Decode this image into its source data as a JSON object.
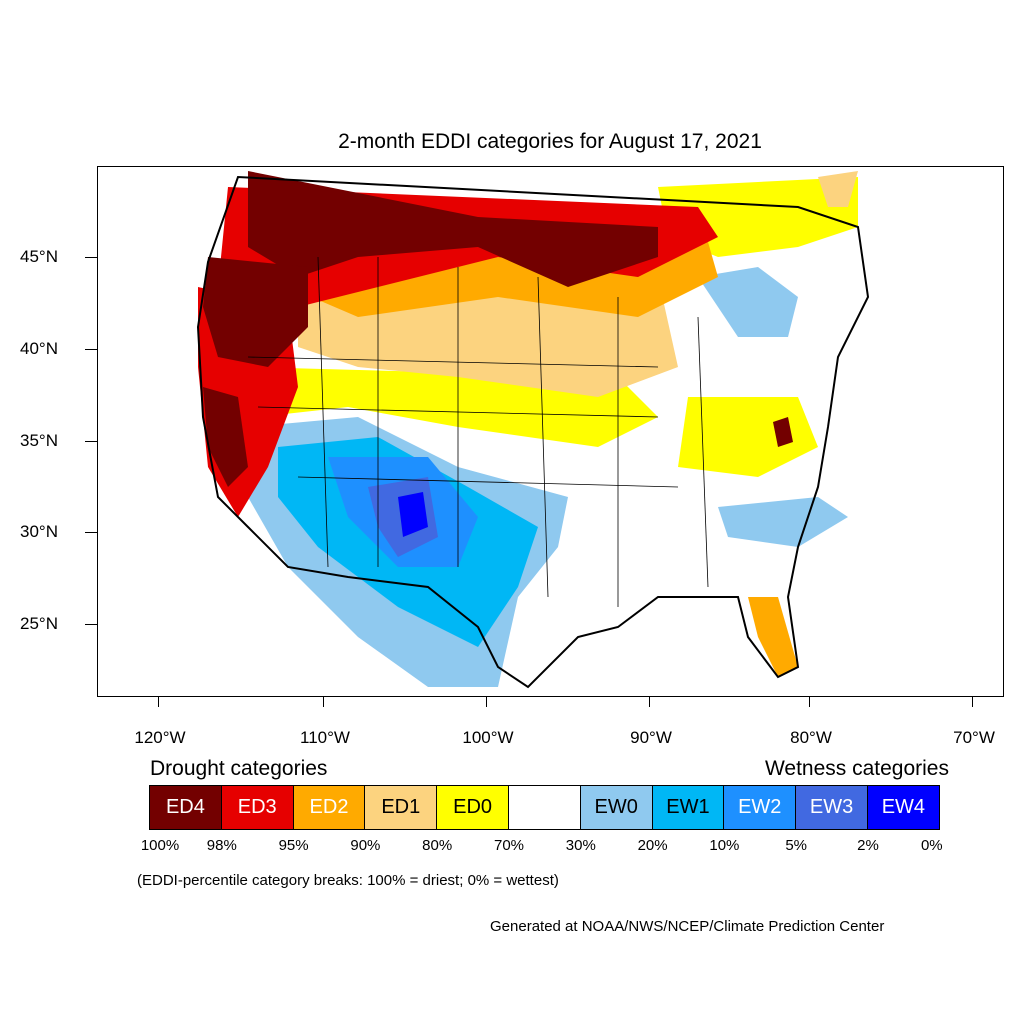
{
  "title": "2-month EDDI categories for August 17, 2021",
  "lat_labels": [
    "45°N",
    "40°N",
    "35°N",
    "30°N",
    "25°N"
  ],
  "lon_labels": [
    "120°W",
    "110°W",
    "100°W",
    "90°W",
    "80°W",
    "70°W"
  ],
  "legend": {
    "drought_heading": "Drought categories",
    "wetness_heading": "Wetness categories",
    "categories": [
      {
        "label": "ED4",
        "color": "#730000",
        "text_color": "#ffffff"
      },
      {
        "label": "ED3",
        "color": "#e60000",
        "text_color": "#ffffff"
      },
      {
        "label": "ED2",
        "color": "#ffaa00",
        "text_color": "#ffffff"
      },
      {
        "label": "ED1",
        "color": "#fcd37f",
        "text_color": "#000000"
      },
      {
        "label": "ED0",
        "color": "#ffff00",
        "text_color": "#000000"
      },
      {
        "label": "",
        "color": "#ffffff",
        "text_color": "#000000"
      },
      {
        "label": "EW0",
        "color": "#8fc9ef",
        "text_color": "#000000"
      },
      {
        "label": "EW1",
        "color": "#00b7f5",
        "text_color": "#000000"
      },
      {
        "label": "EW2",
        "color": "#1e90ff",
        "text_color": "#ffffff"
      },
      {
        "label": "EW3",
        "color": "#4169e1",
        "text_color": "#ffffff"
      },
      {
        "label": "EW4",
        "color": "#0000ff",
        "text_color": "#ffffff"
      }
    ],
    "percent_breaks": [
      "100%",
      "98%",
      "95%",
      "90%",
      "80%",
      "70%",
      "30%",
      "20%",
      "10%",
      "5%",
      "2%",
      "0%"
    ]
  },
  "note": "(EDDI-percentile category breaks: 100% = driest; 0% = wettest)",
  "credit": "Generated at NOAA/NWS/NCEP/Climate Prediction Center"
}
